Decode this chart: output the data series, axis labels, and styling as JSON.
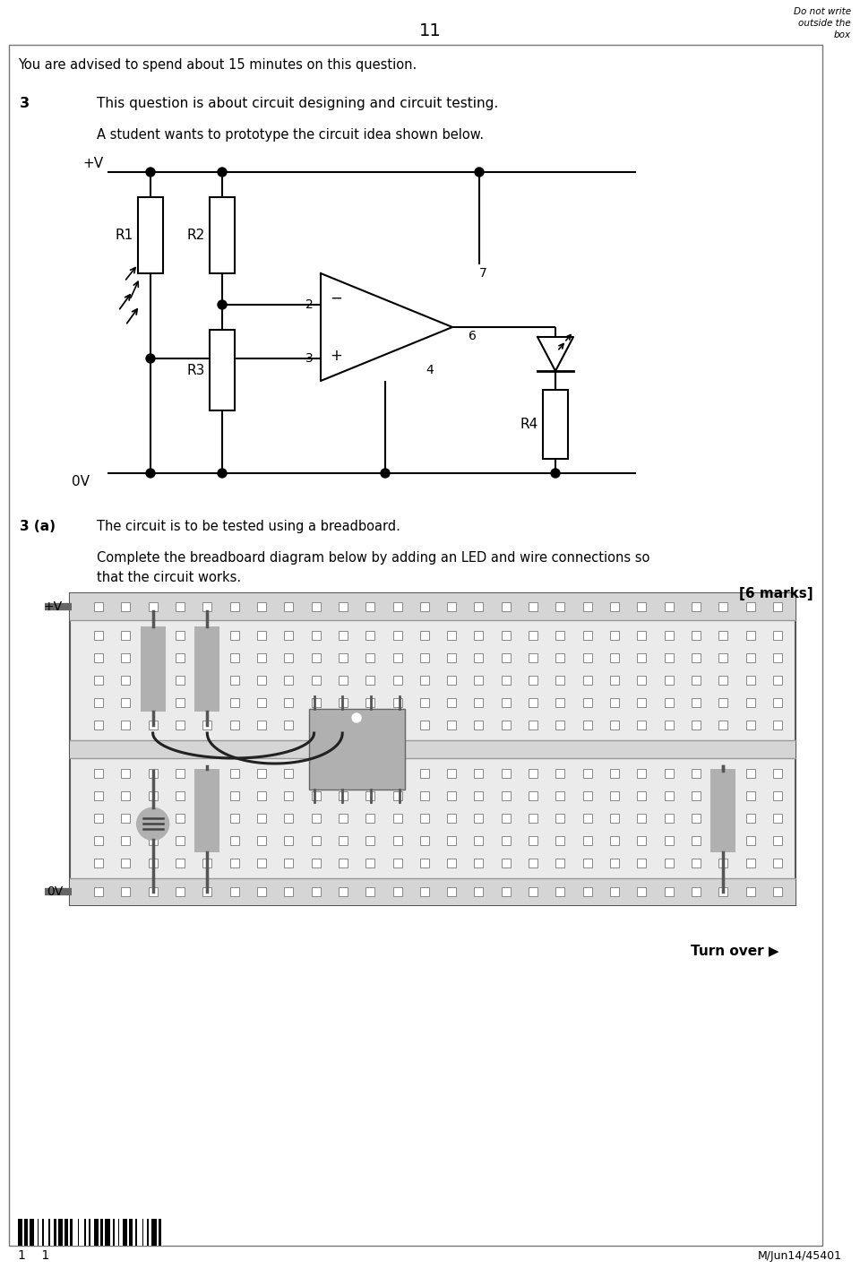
{
  "page_number": "11",
  "do_not_write": "Do not write\noutside the\nbox",
  "advised_text": "You are advised to spend about 15 minutes on this question.",
  "q_number": "3",
  "q_text": "This question is about circuit designing and circuit testing.",
  "q_subtext": "A student wants to prototype the circuit idea shown below.",
  "qa_number": "3 (a)",
  "qa_text": "The circuit is to be tested using a breadboard.",
  "qa_subtext": "Complete the breadboard diagram below by adding an LED and wire connections so\nthat the circuit works.",
  "marks": "[6 marks]",
  "turn_over": "Turn over ▶",
  "ref": "M/Jun14/45401",
  "barcode_label": "1    1",
  "bg_color": "#ffffff",
  "text_color": "#000000",
  "comp_gray": "#b0b0b0",
  "hole_color": "#ffffff",
  "hole_edge": "#888888",
  "rail_color": "#cccccc",
  "bb_bg": "#e8e8e8"
}
